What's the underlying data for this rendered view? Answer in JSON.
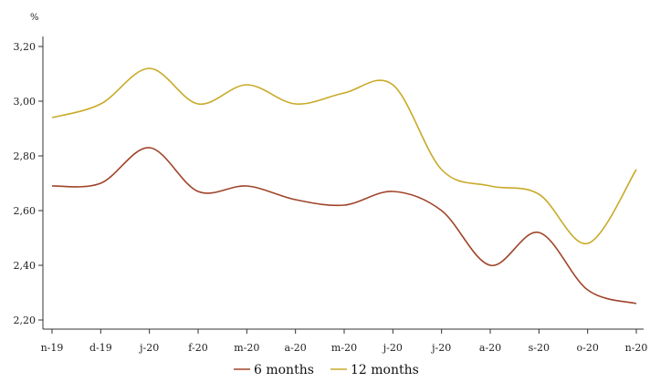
{
  "chart_data": {
    "type": "line",
    "unit_label": "%",
    "categories": [
      "n-19",
      "d-19",
      "j-20",
      "f-20",
      "m-20",
      "a-20",
      "m-20",
      "j-20",
      "j-20",
      "a-20",
      "s-20",
      "o-20",
      "n-20"
    ],
    "series": [
      {
        "name": "6 months",
        "color": "#a0442a",
        "values": [
          2.69,
          2.7,
          2.83,
          2.67,
          2.69,
          2.64,
          2.62,
          2.67,
          2.6,
          2.4,
          2.52,
          2.31,
          2.26
        ]
      },
      {
        "name": "12 months",
        "color": "#c9aa28",
        "values": [
          2.94,
          2.99,
          3.12,
          2.99,
          3.06,
          2.99,
          3.03,
          3.06,
          2.75,
          2.69,
          2.66,
          2.48,
          2.75
        ]
      }
    ],
    "yticks": [
      "2,20",
      "2,40",
      "2,60",
      "2,80",
      "3,00",
      "3,20"
    ],
    "ylim": [
      2.2,
      3.2
    ],
    "grid": false,
    "legend_position": "bottom"
  }
}
